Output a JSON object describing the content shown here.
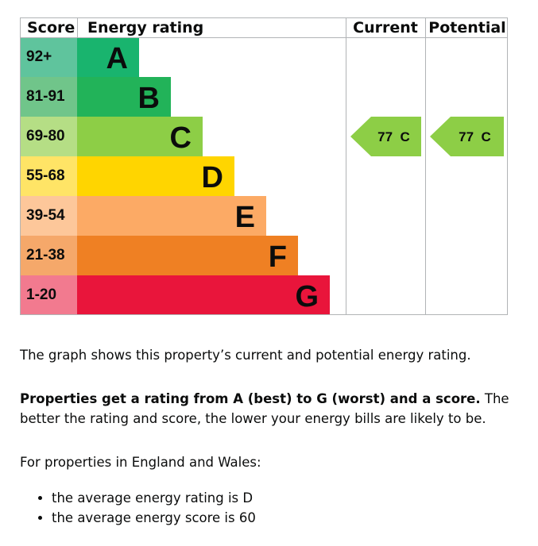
{
  "chart_data": {
    "type": "bar",
    "headers": {
      "score": "Score",
      "rating": "Energy rating",
      "current": "Current",
      "potential": "Potential"
    },
    "bands": [
      {
        "letter": "A",
        "range": "92+",
        "color": "#19b46e",
        "score_color": "#5fc49d"
      },
      {
        "letter": "B",
        "range": "81-91",
        "color": "#22b359",
        "score_color": "#70c58a"
      },
      {
        "letter": "C",
        "range": "69-80",
        "color": "#8dce46",
        "score_color": "#b5de85"
      },
      {
        "letter": "D",
        "range": "55-68",
        "color": "#ffd500",
        "score_color": "#ffe466"
      },
      {
        "letter": "E",
        "range": "39-54",
        "color": "#fcaa65",
        "score_color": "#fdc79a"
      },
      {
        "letter": "F",
        "range": "21-38",
        "color": "#ef8023",
        "score_color": "#f5a86a"
      },
      {
        "letter": "G",
        "range": "1-20",
        "color": "#e9153b",
        "score_color": "#f27a8f"
      }
    ],
    "current": {
      "score": 77,
      "band": "C",
      "label": "77  C"
    },
    "potential": {
      "score": 77,
      "band": "C",
      "label": "77  C"
    }
  },
  "text": {
    "intro": "The graph shows this property’s current and potential energy rating.",
    "bold": "Properties get a rating from A (best) to G (worst) and a score.",
    "rest": " The better the rating and score, the lower your energy bills are likely to be.",
    "region": "For properties in England and Wales:",
    "bullets": [
      "the average energy rating is D",
      "the average energy score is 60"
    ]
  }
}
